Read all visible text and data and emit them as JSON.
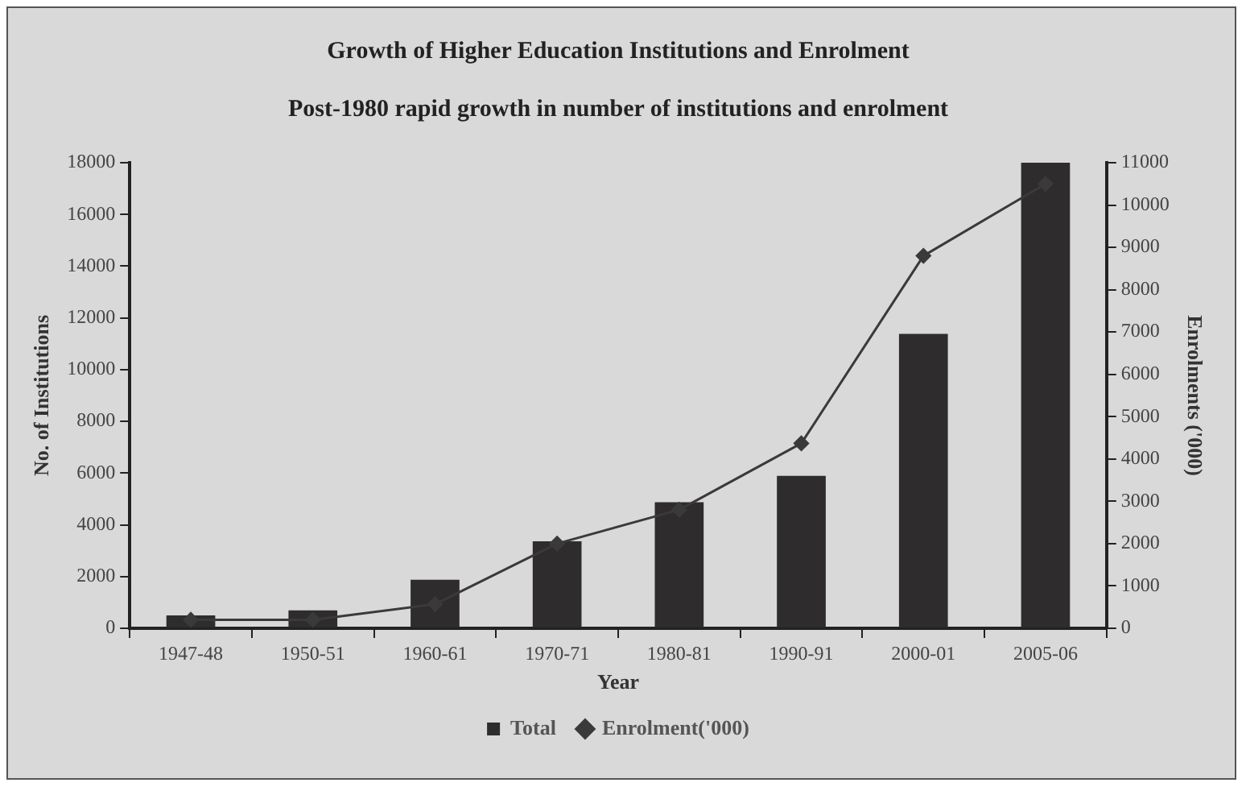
{
  "chart_data": {
    "type": "bar",
    "title": "Growth of Higher Education Institutions and Enrolment",
    "subtitle": "Post-1980 rapid growth in number of institutions and enrolment",
    "xlabel": "Year",
    "ylabel": "No. of Institutions",
    "y2label": "Enrolments ('000)",
    "categories": [
      "1947-48",
      "1950-51",
      "1960-61",
      "1970-71",
      "1980-81",
      "1990-91",
      "2000-01",
      "2005-06"
    ],
    "series": [
      {
        "name": "Total",
        "color": "#2e2c2d",
        "values": [
          500,
          690,
          1880,
          3360,
          4870,
          5890,
          11380,
          18000
        ]
      },
      {
        "name": "Enrolment('000)",
        "type": "line",
        "axis": "y2",
        "color": "#3a3a3a",
        "values": [
          200,
          200,
          570,
          2000,
          2800,
          4370,
          8800,
          10500
        ]
      }
    ],
    "ylim": [
      0,
      18000
    ],
    "yticks": [
      0,
      2000,
      4000,
      6000,
      8000,
      10000,
      12000,
      14000,
      16000,
      18000
    ],
    "y2lim": [
      0,
      11000
    ],
    "y2ticks": [
      0,
      1000,
      2000,
      3000,
      4000,
      5000,
      6000,
      7000,
      8000,
      9000,
      10000,
      11000
    ],
    "grid": false,
    "legend": "bottom",
    "marker": "diamond",
    "line_style": "solid"
  }
}
